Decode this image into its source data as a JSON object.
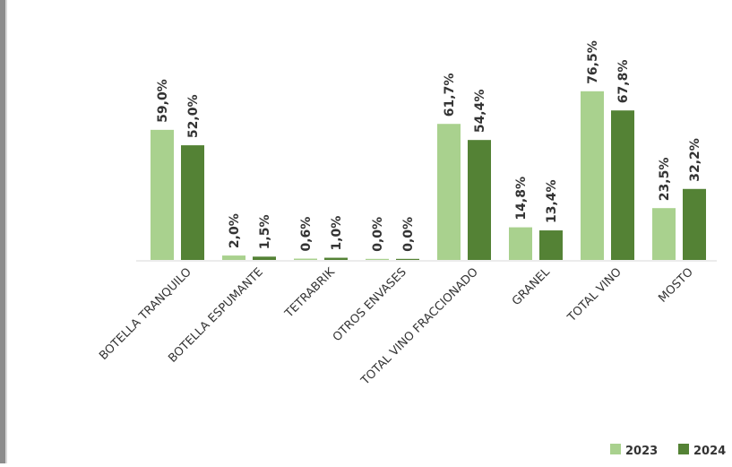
{
  "chart_data": {
    "type": "bar",
    "categories": [
      "BOTELLA TRANQUILO",
      "BOTELLA ESPUMANTE",
      "TETRABRIK",
      "OTROS ENVASES",
      "TOTAL VINO FRACCIONADO",
      "GRANEL",
      "TOTAL VINO",
      "MOSTO"
    ],
    "series": [
      {
        "name": "2023",
        "color": "#a9d18e",
        "values": [
          59.0,
          2.0,
          0.6,
          0.0,
          61.7,
          14.8,
          76.5,
          23.5
        ],
        "labels": [
          "59,0%",
          "2,0%",
          "0,6%",
          "0,0%",
          "61,7%",
          "14,8%",
          "76,5%",
          "23,5%"
        ]
      },
      {
        "name": "2024",
        "color": "#548235",
        "values": [
          52.0,
          1.5,
          1.0,
          0.0,
          54.4,
          13.4,
          67.8,
          32.2
        ],
        "labels": [
          "52,0%",
          "1,5%",
          "1,0%",
          "0,0%",
          "54,4%",
          "13,4%",
          "67,8%",
          "32,2%"
        ]
      }
    ],
    "title": "",
    "xlabel": "",
    "ylabel": "",
    "ylim": [
      0,
      80
    ],
    "grid": false,
    "legend_position": "bottom-right",
    "legend_labels": [
      "2023",
      "2024"
    ]
  }
}
